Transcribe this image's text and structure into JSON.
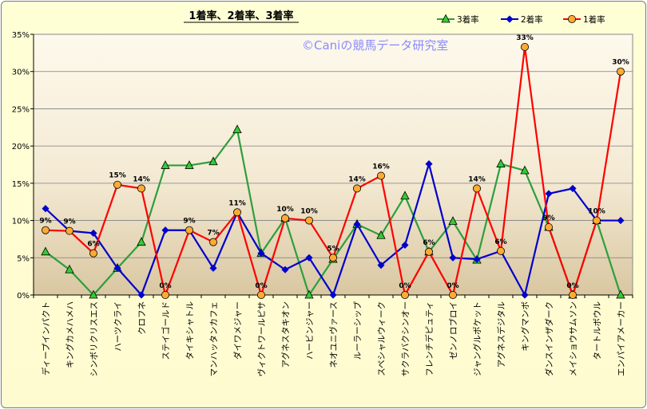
{
  "chart_data": {
    "type": "line",
    "title": "1着率、2着率、3着率",
    "watermark": "©Caniの競馬データ研究室",
    "ylim": [
      0,
      35
    ],
    "yticks": [
      "0%",
      "5%",
      "10%",
      "15%",
      "20%",
      "25%",
      "30%",
      "35%"
    ],
    "grid": true,
    "legend_position": "top-right",
    "categories": [
      "ディープインパクト",
      "キングカメハメハ",
      "シンボリクリスエス",
      "ハーツクライ",
      "クロフネ",
      "ステイゴールド",
      "タイキシャトル",
      "マンハッタンカフェ",
      "ダイワメジャー",
      "ヴィクトワールピサ",
      "アグネスタキオン",
      "ハービンジャー",
      "ネオユニヴァース",
      "ルーラーシップ",
      "スペシャルウィーク",
      "サクラバクシンオー",
      "フレンチデピュティ",
      "ゼンノロブロイ",
      "ジャングルポケット",
      "アグネスデジタル",
      "キングマンボ",
      "ダンスインザダーク",
      "メイショウサムソン",
      "タートルボウル",
      "エンパイアメーカー"
    ],
    "series": [
      {
        "name": "3着率",
        "color": "#2e9e3e",
        "marker": "triangle",
        "marker_fill": "#33cc33",
        "values": [
          5.8,
          3.4,
          0,
          3.6,
          7.1,
          17.4,
          17.4,
          17.9,
          22.2,
          5.6,
          10.3,
          0,
          4.8,
          9.5,
          8.0,
          13.3,
          5.8,
          9.9,
          4.7,
          17.6,
          16.7,
          9.1,
          0,
          10.0,
          0
        ]
      },
      {
        "name": "2着率",
        "color": "#0000cc",
        "marker": "diamond",
        "marker_fill": "#0000cc",
        "values": [
          11.6,
          8.6,
          8.3,
          3.6,
          0,
          8.7,
          8.7,
          3.6,
          11.1,
          5.6,
          3.4,
          5.0,
          0,
          9.5,
          4.0,
          6.7,
          17.6,
          5.0,
          4.8,
          5.9,
          0,
          13.6,
          14.3,
          10.0,
          10.0
        ]
      },
      {
        "name": "1着率",
        "color": "#ff0000",
        "marker": "circle",
        "marker_fill": "#ffaa33",
        "values": [
          8.7,
          8.6,
          5.6,
          14.8,
          14.3,
          0,
          8.7,
          7.1,
          11.1,
          0,
          10.3,
          10.0,
          5.0,
          14.3,
          16.0,
          0,
          5.8,
          0,
          14.3,
          5.9,
          33.3,
          9.1,
          0,
          10.0,
          30.0
        ],
        "data_labels": [
          "9%",
          "9%",
          "6%",
          "15%",
          "14%",
          "0%",
          "9%",
          "7%",
          "11%",
          "0%",
          "10%",
          "10%",
          "5%",
          "14%",
          "16%",
          "0%",
          "6%",
          "0%",
          "14%",
          "6%",
          "33%",
          "9%",
          "0%",
          "10%",
          "30%"
        ]
      }
    ]
  }
}
